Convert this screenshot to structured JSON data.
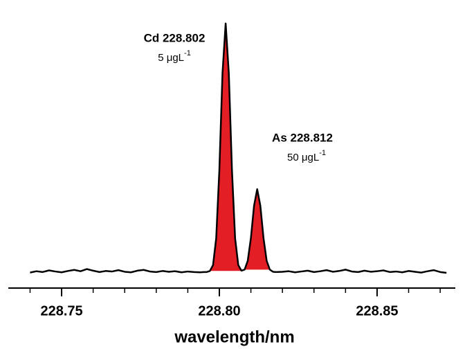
{
  "chart_data": {
    "type": "line",
    "x_label": "wavelength/nm",
    "annotations": [
      {
        "title": "Cd 228.802",
        "note": "5 μgL",
        "note_sup": "-1"
      },
      {
        "title": "As 228.812",
        "note": "50 μgL",
        "note_sup": "-1"
      }
    ],
    "xlim": [
      228.7331,
      228.8748
    ],
    "ylim": [
      0,
      100
    ],
    "xticks": [
      228.75,
      {
        "value": 228.8,
        "label": "228.80"
      },
      228.85
    ],
    "xminorticks": [
      228.74,
      228.76,
      228.77,
      228.78,
      228.79,
      228.81,
      228.82,
      228.83,
      228.84,
      228.86,
      228.87
    ],
    "series": [
      {
        "color": "#000000",
        "fill_color": "#e31e24",
        "x": [
          228.74,
          228.742,
          228.744,
          228.746,
          228.748,
          228.75,
          228.752,
          228.754,
          228.756,
          228.758,
          228.76,
          228.762,
          228.764,
          228.766,
          228.768,
          228.77,
          228.772,
          228.774,
          228.776,
          228.778,
          228.78,
          228.782,
          228.784,
          228.786,
          228.788,
          228.79,
          228.792,
          228.794,
          228.795,
          228.796,
          228.797,
          228.798,
          228.799,
          228.8,
          228.801,
          228.802,
          228.803,
          228.804,
          228.805,
          228.806,
          228.807,
          228.808,
          228.809,
          228.81,
          228.811,
          228.812,
          228.813,
          228.814,
          228.815,
          228.816,
          228.817,
          228.818,
          228.82,
          228.822,
          228.824,
          228.826,
          228.828,
          228.83,
          228.832,
          228.834,
          228.836,
          228.838,
          228.84,
          228.842,
          228.844,
          228.846,
          228.848,
          228.85,
          228.852,
          228.854,
          228.856,
          228.858,
          228.86,
          228.862,
          228.864,
          228.866,
          228.868,
          228.87,
          228.872
        ],
        "values": [
          5.8,
          6.3,
          6.0,
          6.6,
          6.2,
          5.9,
          6.4,
          6.8,
          6.3,
          7.1,
          6.5,
          6.0,
          6.4,
          6.2,
          6.7,
          6.1,
          5.9,
          6.5,
          6.8,
          6.2,
          6.0,
          6.4,
          6.1,
          6.3,
          5.9,
          6.2,
          6.0,
          5.9,
          6.0,
          6.0,
          6.4,
          8.6,
          18.6,
          44.1,
          80.4,
          99,
          80.4,
          44.1,
          18.6,
          8.6,
          6.5,
          6.9,
          10.2,
          18.7,
          30.8,
          37,
          30.8,
          18.7,
          10.2,
          6.9,
          6.1,
          6.0,
          6.1,
          6.3,
          5.9,
          6.2,
          6.5,
          6.0,
          6.3,
          6.7,
          6.1,
          6.4,
          6.9,
          6.2,
          6.0,
          6.5,
          6.1,
          6.3,
          6.6,
          6.0,
          6.2,
          5.9,
          6.4,
          6.1,
          5.8,
          6.3,
          6.7,
          6.0,
          5.7
        ]
      }
    ]
  }
}
